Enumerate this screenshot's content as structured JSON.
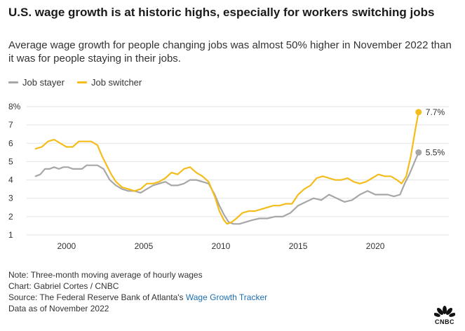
{
  "header": {
    "title": "U.S. wage growth is at historic highs, especially for workers switching jobs",
    "subtitle": "Average wage growth for people changing jobs was almost 50% higher in November 2022 than it was for people staying in their jobs."
  },
  "colors": {
    "stayer": "#a7a7a7",
    "switcher": "#f4bd1c",
    "grid": "#e3e3e3",
    "axis_text": "#333333",
    "link": "#1e6fb3"
  },
  "footer": {
    "note": "Note: Three-month moving average of hourly wages",
    "chart_credit": "Chart: Gabriel Cortes / CNBC",
    "source_prefix": "Source: The Federal Reserve Bank of Atlanta's ",
    "source_link": "Wage Growth Tracker",
    "data_as_of": "Data as of November 2022",
    "logo_text": "CNBC"
  },
  "chart_data": {
    "type": "line",
    "title": "U.S. wage growth is at historic highs, especially for workers switching jobs",
    "xlabel": "",
    "ylabel": "",
    "xlim": [
      1997.6,
      2023.4
    ],
    "ylim": [
      1,
      8
    ],
    "x_ticks": [
      2000,
      2005,
      2010,
      2015,
      2020
    ],
    "y_ticks": [
      1,
      2,
      3,
      4,
      5,
      6,
      7,
      8
    ],
    "y_tick_labels": [
      "1",
      "2",
      "3",
      "4",
      "5",
      "6",
      "7",
      "8%"
    ],
    "legend_position": "top-left",
    "series": [
      {
        "name": "Job stayer",
        "end_label": "5.5%",
        "x": [
          1998.0,
          1998.3,
          1998.6,
          1998.9,
          1999.2,
          1999.5,
          1999.8,
          2000.1,
          2000.4,
          2000.7,
          2001.0,
          2001.3,
          2001.6,
          2002.0,
          2002.4,
          2002.8,
          2003.2,
          2003.6,
          2004.0,
          2004.4,
          2004.8,
          2005.2,
          2005.6,
          2006.0,
          2006.4,
          2006.8,
          2007.2,
          2007.6,
          2008.0,
          2008.4,
          2008.8,
          2009.2,
          2009.6,
          2009.9,
          2010.2,
          2010.5,
          2010.8,
          2011.2,
          2011.6,
          2012.0,
          2012.5,
          2013.0,
          2013.5,
          2014.0,
          2014.5,
          2015.0,
          2015.5,
          2016.0,
          2016.5,
          2017.0,
          2017.5,
          2018.0,
          2018.5,
          2019.0,
          2019.5,
          2020.0,
          2020.4,
          2020.8,
          2021.2,
          2021.6,
          2021.9,
          2022.2,
          2022.5,
          2022.8
        ],
        "values": [
          4.2,
          4.3,
          4.6,
          4.6,
          4.7,
          4.6,
          4.7,
          4.7,
          4.6,
          4.6,
          4.6,
          4.8,
          4.8,
          4.8,
          4.6,
          4.0,
          3.7,
          3.5,
          3.4,
          3.4,
          3.3,
          3.5,
          3.7,
          3.8,
          3.9,
          3.7,
          3.7,
          3.8,
          4.0,
          4.0,
          3.9,
          3.8,
          3.2,
          2.6,
          2.1,
          1.7,
          1.6,
          1.6,
          1.7,
          1.8,
          1.9,
          1.9,
          2.0,
          2.0,
          2.2,
          2.6,
          2.8,
          3.0,
          2.9,
          3.2,
          3.0,
          2.8,
          2.9,
          3.2,
          3.4,
          3.2,
          3.2,
          3.2,
          3.1,
          3.2,
          3.8,
          4.3,
          4.9,
          5.5
        ]
      },
      {
        "name": "Job switcher",
        "end_label": "7.7%",
        "x": [
          1998.0,
          1998.4,
          1998.8,
          1999.2,
          1999.6,
          2000.0,
          2000.4,
          2000.8,
          2001.2,
          2001.6,
          2002.0,
          2002.3,
          2002.6,
          2002.9,
          2003.2,
          2003.6,
          2004.0,
          2004.4,
          2004.8,
          2005.2,
          2005.6,
          2006.0,
          2006.4,
          2006.8,
          2007.2,
          2007.6,
          2008.0,
          2008.4,
          2008.8,
          2009.2,
          2009.6,
          2009.9,
          2010.2,
          2010.4,
          2010.7,
          2011.0,
          2011.4,
          2011.8,
          2012.2,
          2012.6,
          2013.0,
          2013.4,
          2013.8,
          2014.2,
          2014.6,
          2015.0,
          2015.4,
          2015.8,
          2016.2,
          2016.6,
          2017.0,
          2017.4,
          2017.8,
          2018.2,
          2018.6,
          2019.0,
          2019.4,
          2019.8,
          2020.2,
          2020.6,
          2021.0,
          2021.4,
          2021.7,
          2022.0,
          2022.3,
          2022.6,
          2022.8
        ],
        "values": [
          5.7,
          5.8,
          6.1,
          6.2,
          6.0,
          5.8,
          5.8,
          6.1,
          6.1,
          6.1,
          5.9,
          5.3,
          4.8,
          4.3,
          3.9,
          3.6,
          3.5,
          3.4,
          3.5,
          3.8,
          3.8,
          3.9,
          4.1,
          4.4,
          4.3,
          4.6,
          4.7,
          4.4,
          4.2,
          3.9,
          3.1,
          2.3,
          1.8,
          1.6,
          1.7,
          1.9,
          2.2,
          2.3,
          2.3,
          2.4,
          2.5,
          2.6,
          2.6,
          2.7,
          2.7,
          3.2,
          3.5,
          3.7,
          4.1,
          4.2,
          4.1,
          4.0,
          4.0,
          4.1,
          3.9,
          3.8,
          3.9,
          4.1,
          4.3,
          4.2,
          4.2,
          4.0,
          3.8,
          4.2,
          5.3,
          6.8,
          7.7
        ]
      }
    ]
  }
}
